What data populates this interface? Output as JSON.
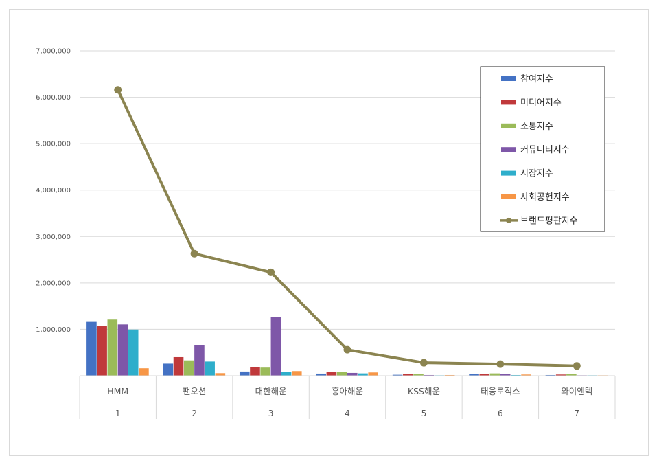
{
  "chart_data": {
    "type": "bar",
    "categories": [
      "HMM",
      "팬오션",
      "대한해운",
      "흥아해운",
      "KSS해운",
      "태웅로직스",
      "와이엔텍"
    ],
    "ranks": [
      "1",
      "2",
      "3",
      "4",
      "5",
      "6",
      "7"
    ],
    "ylim": [
      0,
      7000000
    ],
    "yticks": [
      0,
      1000000,
      2000000,
      3000000,
      4000000,
      5000000,
      6000000,
      7000000
    ],
    "ytick_labels": [
      "-",
      "1,000,000",
      "2,000,000",
      "3,000,000",
      "4,000,000",
      "5,000,000",
      "6,000,000",
      "7,000,000"
    ],
    "grid": true,
    "legend_position": "top-right",
    "series": [
      {
        "name": "참여지수",
        "type": "bar",
        "color": "#4472c4",
        "values": [
          1160000,
          260000,
          90000,
          45000,
          20000,
          35000,
          15000
        ]
      },
      {
        "name": "미디어지수",
        "type": "bar",
        "color": "#c0393b",
        "values": [
          1080000,
          400000,
          185000,
          85000,
          40000,
          40000,
          25000
        ]
      },
      {
        "name": "소통지수",
        "type": "bar",
        "color": "#9bbb59",
        "values": [
          1210000,
          330000,
          175000,
          80000,
          35000,
          50000,
          30000
        ]
      },
      {
        "name": "커뮤니티지수",
        "type": "bar",
        "color": "#7e57a8",
        "values": [
          1105000,
          665000,
          1265000,
          60000,
          15000,
          30000,
          10000
        ]
      },
      {
        "name": "시장지수",
        "type": "bar",
        "color": "#2eaecb",
        "values": [
          995000,
          305000,
          75000,
          50000,
          10000,
          15000,
          10000
        ]
      },
      {
        "name": "사회공헌지수",
        "type": "bar",
        "color": "#f79646",
        "values": [
          160000,
          55000,
          100000,
          70000,
          15000,
          25000,
          10000
        ]
      },
      {
        "name": "브랜드평판지수",
        "type": "line",
        "color": "#8b8450",
        "values": [
          6160000,
          2630000,
          2230000,
          560000,
          280000,
          250000,
          210000
        ]
      }
    ]
  }
}
